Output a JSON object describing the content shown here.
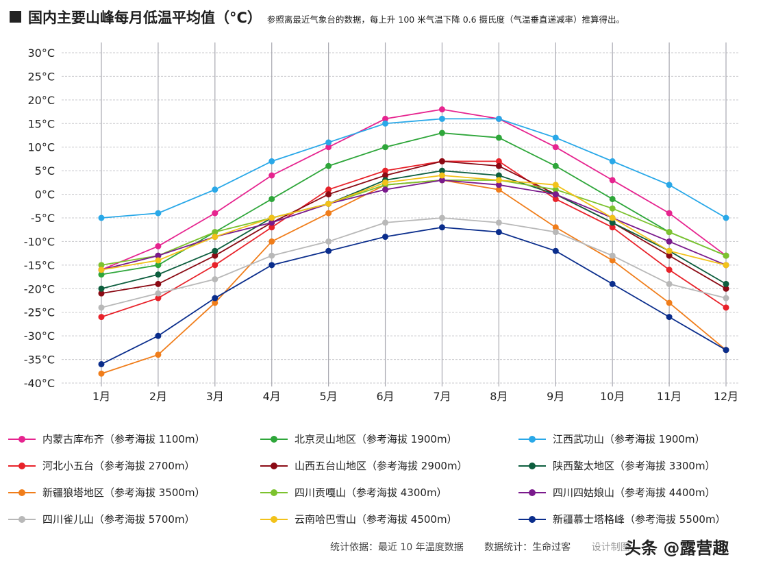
{
  "title": {
    "main": "国内主要山峰每月低温平均值（°C）",
    "subtitle": "参照离最近气象台的数据，每上升 100 米气温下降 0.6 摄氏度（气温垂直递减率）推算得出。"
  },
  "footer": {
    "basis": "统计依据：最近 10 年温度数据",
    "stats": "数据统计：生命过客",
    "design": "设计制图"
  },
  "watermark": "头条 @露营趣",
  "chart_data": {
    "type": "line",
    "title": "国内主要山峰每月低温平均值（°C）",
    "categories": [
      "1月",
      "2月",
      "3月",
      "4月",
      "5月",
      "6月",
      "7月",
      "8月",
      "9月",
      "10月",
      "11月",
      "12月"
    ],
    "ylim": [
      -40,
      30
    ],
    "yticks": [
      30,
      25,
      20,
      15,
      10,
      5,
      0,
      -5,
      -10,
      -15,
      -20,
      -25,
      -30,
      -35,
      -40
    ],
    "ytick_labels": [
      "30°C",
      "25°C",
      "20°C",
      "15°C",
      "10°C",
      "5°C",
      "0°C",
      "-5°C",
      "-10°C",
      "-15°C",
      "-20°C",
      "-25°C",
      "-30°C",
      "-35°C",
      "-40°C"
    ],
    "grid": true,
    "legend_position": "bottom",
    "series": [
      {
        "name": "内蒙古库布齐（参考海拔 1100m）",
        "color": "#e6248f",
        "values": [
          -16,
          -11,
          -4,
          4,
          10,
          16,
          18,
          16,
          10,
          3,
          -4,
          -13
        ]
      },
      {
        "name": "北京灵山地区（参考海拔 1900m）",
        "color": "#2ea63a",
        "values": [
          -17,
          -15,
          -8,
          -1,
          6,
          10,
          13,
          12,
          6,
          -1,
          -8,
          -13
        ]
      },
      {
        "name": "江西武功山（参考海拔 1900m）",
        "color": "#29a8e8",
        "values": [
          -5,
          -4,
          1,
          7,
          11,
          15,
          16,
          16,
          12,
          7,
          2,
          -5
        ]
      },
      {
        "name": "河北小五台（参考海拔 2700m）",
        "color": "#e8222a",
        "values": [
          -26,
          -22,
          -15,
          -7,
          1,
          5,
          7,
          7,
          -1,
          -7,
          -16,
          -24
        ]
      },
      {
        "name": "山西五台山地区（参考海拔 2900m）",
        "color": "#8b0a14",
        "values": [
          -21,
          -19,
          -13,
          -6,
          0,
          4,
          7,
          6,
          0,
          -6,
          -13,
          -20
        ]
      },
      {
        "name": "陕西鳌太地区（参考海拔 3300m）",
        "color": "#0d5e3e",
        "values": [
          -20,
          -17,
          -12,
          -5,
          -2,
          3,
          5,
          4,
          0,
          -6,
          -12,
          -19
        ]
      },
      {
        "name": "新疆狼塔地区（参考海拔 3500m）",
        "color": "#f07d1a",
        "values": [
          -38,
          -34,
          -23,
          -10,
          -4,
          2,
          3,
          1,
          -7,
          -14,
          -23,
          -33
        ]
      },
      {
        "name": "四川贡嘎山（参考海拔 4300m）",
        "color": "#7cc22e",
        "values": [
          -15,
          -13,
          -8,
          -5,
          -2,
          2,
          3,
          3,
          1,
          -3,
          -8,
          -13
        ]
      },
      {
        "name": "四川四姑娘山（参考海拔 4400m）",
        "color": "#7a1a8c",
        "values": [
          -16,
          -13,
          -9,
          -6,
          -2,
          1,
          3,
          2,
          0,
          -5,
          -10,
          -15
        ]
      },
      {
        "name": "四川雀儿山（参考海拔 5700m）",
        "color": "#b8b8b8",
        "values": [
          -24,
          -21,
          -18,
          -13,
          -10,
          -6,
          -5,
          -6,
          -8,
          -13,
          -19,
          -22
        ]
      },
      {
        "name": "云南哈巴雪山（参考海拔 4500m）",
        "color": "#f2c21a",
        "values": [
          -16,
          -14,
          -9,
          -5,
          -2,
          2.5,
          4,
          3,
          2,
          -5,
          -12,
          -15
        ]
      },
      {
        "name": "新疆慕士塔格峰（参考海拔 5500m）",
        "color": "#0a2d8c",
        "values": [
          -36,
          -30,
          -22,
          -15,
          -12,
          -9,
          -7,
          -8,
          -12,
          -19,
          -26,
          -33
        ]
      }
    ]
  }
}
